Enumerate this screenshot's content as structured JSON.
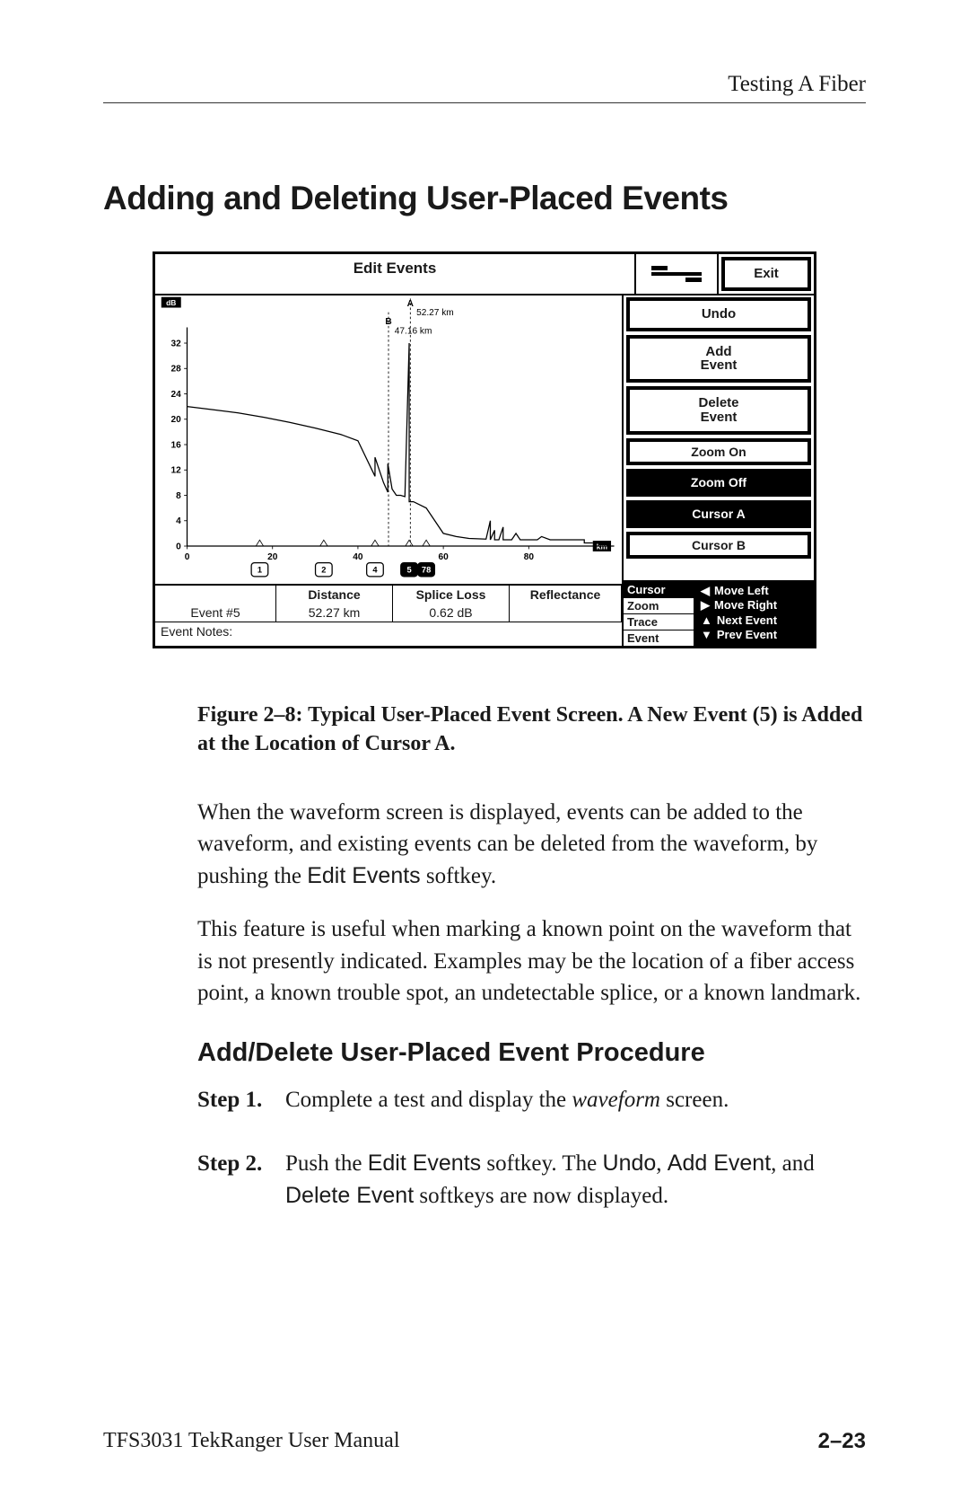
{
  "running_head": "Testing A Fiber",
  "main_heading": "Adding and Deleting User-Placed Events",
  "screen": {
    "title": "Edit Events",
    "cursor_a": {
      "label": "A",
      "text": "52.27 km"
    },
    "cursor_b": {
      "label": "B",
      "text": "47.16 km"
    },
    "y_ticks": [
      "32",
      "28",
      "24",
      "20",
      "16",
      "12",
      "8",
      "4",
      "0"
    ],
    "y_unit": "dB",
    "x_ticks": [
      "0",
      "20",
      "40",
      "60",
      "80"
    ],
    "x_unit": "km",
    "softkeys": {
      "exit": "Exit",
      "undo": "Undo",
      "add": "Add\nEvent",
      "del": "Delete\nEvent",
      "zoom_on": "Zoom On",
      "zoom_off": "Zoom Off",
      "cur_a": "Cursor A",
      "cur_b": "Cursor B"
    },
    "event_markers": [
      "1",
      "2",
      "4",
      "5",
      "78"
    ],
    "table": {
      "headers": {
        "a": "",
        "b": "Distance",
        "c": "Splice Loss",
        "d": "Reflectance"
      },
      "row": {
        "a": "Event #5",
        "b": "52.27 km",
        "c": "0.62 dB",
        "d": ""
      }
    },
    "event_notes_label": "Event Notes:",
    "modes": [
      "Cursor",
      "Zoom",
      "Trace",
      "Event"
    ],
    "arrows": {
      "left": "Move Left",
      "right": "Move Right",
      "up": "Next Event",
      "down": "Prev Event"
    },
    "trace": {
      "points": [
        [
          0,
          22
        ],
        [
          6,
          21.5
        ],
        [
          12,
          21
        ],
        [
          18,
          20.3
        ],
        [
          24,
          19.5
        ],
        [
          30,
          18.6
        ],
        [
          36,
          17.6
        ],
        [
          40,
          16.6
        ],
        [
          44,
          11
        ],
        [
          44,
          14
        ],
        [
          46,
          10
        ],
        [
          47,
          8.5
        ],
        [
          47,
          13
        ],
        [
          48,
          9
        ],
        [
          49,
          8
        ],
        [
          50,
          8
        ],
        [
          51,
          7.8
        ],
        [
          52,
          32
        ],
        [
          52,
          7
        ],
        [
          53,
          7
        ],
        [
          56,
          6
        ],
        [
          60,
          2
        ],
        [
          63,
          1.5
        ],
        [
          66,
          1.2
        ],
        [
          70,
          1.1
        ],
        [
          71,
          4
        ],
        [
          71,
          1
        ],
        [
          72,
          2.5
        ],
        [
          72,
          1
        ],
        [
          73,
          1
        ],
        [
          74,
          3
        ],
        [
          74,
          1
        ],
        [
          76,
          1
        ],
        [
          77,
          2
        ],
        [
          78,
          1
        ],
        [
          82,
          1
        ],
        [
          83,
          1.5
        ],
        [
          85,
          1
        ],
        [
          93,
          1
        ],
        [
          93,
          0.5
        ],
        [
          95,
          0.5
        ]
      ],
      "x_domain": [
        0,
        100
      ],
      "y_domain": [
        0,
        34
      ]
    },
    "colors": {
      "fg": "#000000",
      "bg": "#ffffff"
    }
  },
  "caption": "Figure 2–8: Typical User-Placed Event Screen. A New Event (5) is Added at the Location of Cursor A.",
  "para1_a": "When the waveform screen is displayed, events can be added to the waveform, and existing events can be deleted from the waveform, by pushing the ",
  "para1_b": "Edit Events",
  "para1_c": " softkey.",
  "para2": "This feature is useful when marking a known point on the waveform that is not presently indicated. Examples may be the location of a fiber access point, a known trouble spot, an undetectable splice, or a known landmark.",
  "sub_heading": "Add/Delete User-Placed Event Procedure",
  "step1": {
    "label": "Step 1.",
    "a": "Complete a test and display the ",
    "b": "waveform",
    "c": " screen."
  },
  "step2": {
    "label": "Step 2.",
    "a": "Push the ",
    "b": "Edit Events",
    "c": " softkey. The ",
    "d": "Undo",
    "e": ", ",
    "f": "Add Event",
    "g": ", and ",
    "h": "Delete Event",
    "i": " softkeys are now displayed."
  },
  "footer": {
    "left": "TFS3031 TekRanger User Manual",
    "right": "2–23"
  }
}
